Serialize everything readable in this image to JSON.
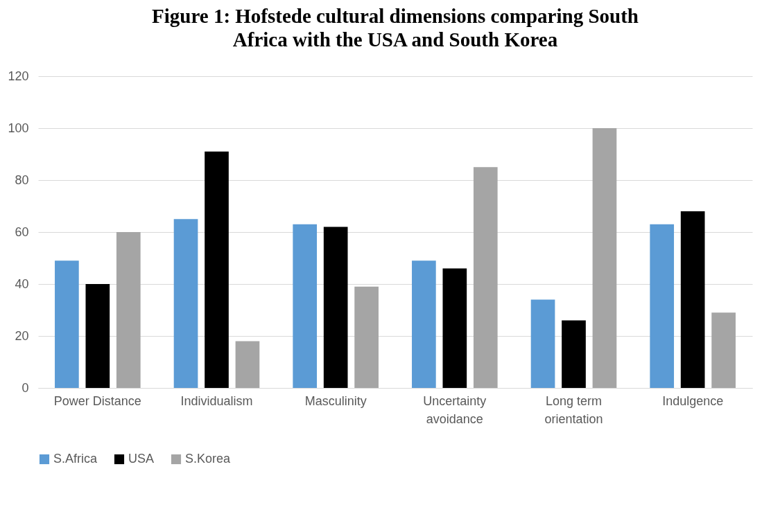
{
  "chart_data": {
    "type": "bar",
    "title": "Figure 1: Hofstede cultural dimensions comparing South Africa with the USA and South Korea",
    "categories": [
      "Power Distance",
      "Individualism",
      "Masculinity",
      "Uncertainty avoidance",
      "Long term orientation",
      "Indulgence"
    ],
    "series": [
      {
        "name": "S.Africa",
        "color": "#5b9bd5",
        "values": [
          49,
          65,
          63,
          49,
          34,
          63
        ]
      },
      {
        "name": "USA",
        "color": "#000000",
        "values": [
          40,
          91,
          62,
          46,
          26,
          68
        ]
      },
      {
        "name": "S.Korea",
        "color": "#a5a5a5",
        "values": [
          60,
          18,
          39,
          85,
          100,
          29
        ]
      }
    ],
    "ylim": [
      0,
      120
    ],
    "yticks": [
      0,
      20,
      40,
      60,
      80,
      100,
      120
    ],
    "grid": "y",
    "legend": "bottom"
  }
}
